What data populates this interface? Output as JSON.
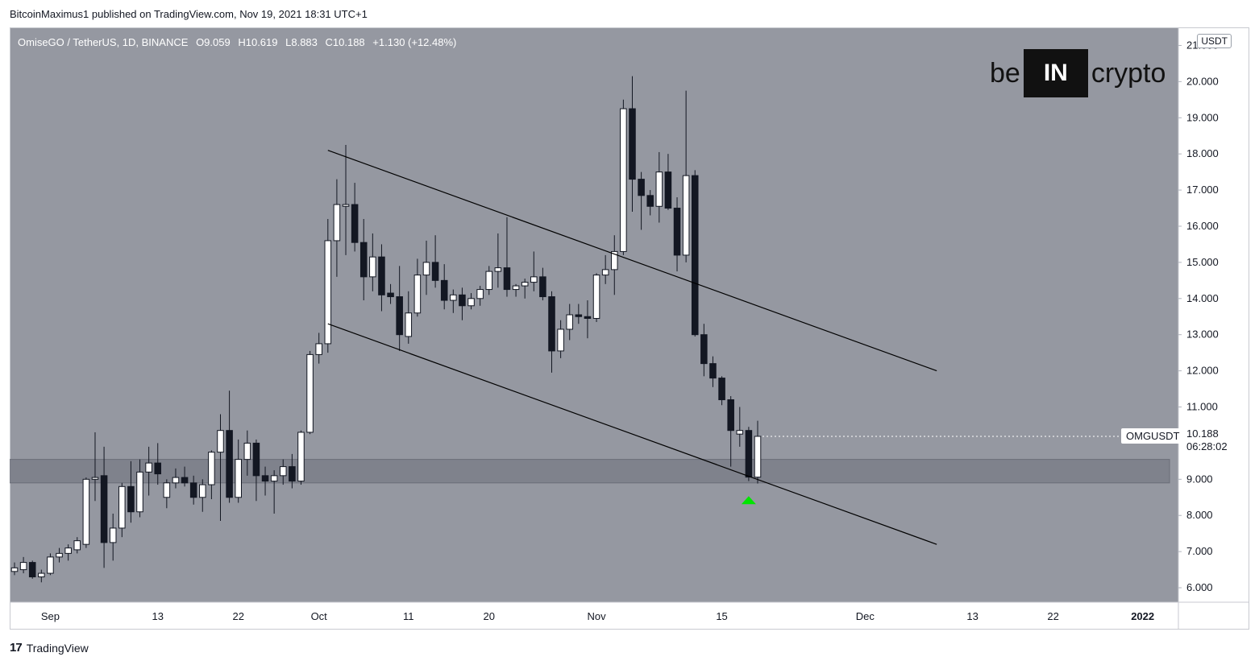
{
  "publisher_line": "BitcoinMaximus1 published on TradingView.com, Nov 19, 2021 18:31 UTC+1",
  "footer_brand": "TradingView",
  "footer_logo": "17",
  "brand": {
    "left": "be",
    "box": "IN",
    "right": "crypto"
  },
  "header": {
    "symbol": "OmiseGO / TetherUS, 1D, BINANCE",
    "open": "O9.059",
    "high": "H10.619",
    "low": "L8.883",
    "close": "C10.188",
    "change": "+1.130 (+12.48%)"
  },
  "currency_badge": "USDT",
  "price_label": "OMGUSDT",
  "price_tag": {
    "price": "10.188",
    "countdown": "06:28:02"
  },
  "colors": {
    "plot_bg": "#9598a1",
    "up_candle": "#ffffff",
    "down_candle": "#131722",
    "zone": "#787b86",
    "arrow": "#00e600",
    "channel": "#000000"
  },
  "chart_data": {
    "type": "candlestick",
    "title": "OmiseGO / TetherUS, 1D, BINANCE",
    "ylim": [
      5.6,
      21.5
    ],
    "y_ticks": [
      6,
      7,
      8,
      9,
      10,
      11,
      12,
      13,
      14,
      15,
      16,
      17,
      18,
      19,
      20,
      21
    ],
    "y_tick_labels": [
      "6.000",
      "7.000",
      "8.000",
      "9.000",
      "10.000",
      "11.000",
      "12.000",
      "13.000",
      "14.000",
      "15.000",
      "16.000",
      "17.000",
      "18.000",
      "19.000",
      "20.000",
      "21.000"
    ],
    "x_range": [
      "2021-08-28",
      "2022-01-04"
    ],
    "x_ticks": [
      {
        "date": "2021-09-01",
        "label": "Sep"
      },
      {
        "date": "2021-09-13",
        "label": "13"
      },
      {
        "date": "2021-09-22",
        "label": "22"
      },
      {
        "date": "2021-10-01",
        "label": "Oct"
      },
      {
        "date": "2021-10-11",
        "label": "11"
      },
      {
        "date": "2021-10-20",
        "label": "20"
      },
      {
        "date": "2021-11-01",
        "label": "Nov"
      },
      {
        "date": "2021-11-15",
        "label": "15"
      },
      {
        "date": "2021-12-01",
        "label": "Dec"
      },
      {
        "date": "2021-12-13",
        "label": "13"
      },
      {
        "date": "2021-12-22",
        "label": "22"
      },
      {
        "date": "2022-01-01",
        "label": "2022"
      }
    ],
    "candles": [
      {
        "date": "2021-08-28",
        "o": 6.45,
        "h": 6.7,
        "l": 6.35,
        "c": 6.55
      },
      {
        "date": "2021-08-29",
        "o": 6.5,
        "h": 6.85,
        "l": 6.4,
        "c": 6.7
      },
      {
        "date": "2021-08-30",
        "o": 6.7,
        "h": 6.75,
        "l": 6.25,
        "c": 6.3
      },
      {
        "date": "2021-08-31",
        "o": 6.3,
        "h": 6.5,
        "l": 6.15,
        "c": 6.4
      },
      {
        "date": "2021-09-01",
        "o": 6.4,
        "h": 6.95,
        "l": 6.35,
        "c": 6.85
      },
      {
        "date": "2021-09-02",
        "o": 6.85,
        "h": 7.1,
        "l": 6.7,
        "c": 6.95
      },
      {
        "date": "2021-09-03",
        "o": 6.95,
        "h": 7.2,
        "l": 6.75,
        "c": 7.1
      },
      {
        "date": "2021-09-04",
        "o": 7.05,
        "h": 7.4,
        "l": 6.95,
        "c": 7.3
      },
      {
        "date": "2021-09-05",
        "o": 7.2,
        "h": 9.05,
        "l": 7.1,
        "c": 9.0
      },
      {
        "date": "2021-09-06",
        "o": 9.0,
        "h": 10.3,
        "l": 8.4,
        "c": 9.05
      },
      {
        "date": "2021-09-07",
        "o": 9.1,
        "h": 9.9,
        "l": 6.55,
        "c": 7.25
      },
      {
        "date": "2021-09-08",
        "o": 7.25,
        "h": 8.05,
        "l": 6.75,
        "c": 7.65
      },
      {
        "date": "2021-09-09",
        "o": 7.65,
        "h": 8.9,
        "l": 7.4,
        "c": 8.8
      },
      {
        "date": "2021-09-10",
        "o": 8.8,
        "h": 9.5,
        "l": 7.8,
        "c": 8.1
      },
      {
        "date": "2021-09-11",
        "o": 8.1,
        "h": 9.55,
        "l": 7.95,
        "c": 9.2
      },
      {
        "date": "2021-09-12",
        "o": 9.2,
        "h": 9.9,
        "l": 8.55,
        "c": 9.45
      },
      {
        "date": "2021-09-13",
        "o": 9.45,
        "h": 10.0,
        "l": 8.85,
        "c": 9.15
      },
      {
        "date": "2021-09-14",
        "o": 8.5,
        "h": 9.0,
        "l": 8.2,
        "c": 8.9
      },
      {
        "date": "2021-09-15",
        "o": 8.9,
        "h": 9.3,
        "l": 8.75,
        "c": 9.05
      },
      {
        "date": "2021-09-16",
        "o": 9.05,
        "h": 9.35,
        "l": 8.8,
        "c": 8.9
      },
      {
        "date": "2021-09-17",
        "o": 8.9,
        "h": 9.1,
        "l": 8.3,
        "c": 8.5
      },
      {
        "date": "2021-09-18",
        "o": 8.5,
        "h": 9.0,
        "l": 8.1,
        "c": 8.85
      },
      {
        "date": "2021-09-19",
        "o": 8.85,
        "h": 9.8,
        "l": 8.45,
        "c": 9.75
      },
      {
        "date": "2021-09-20",
        "o": 9.75,
        "h": 10.8,
        "l": 7.85,
        "c": 10.35
      },
      {
        "date": "2021-09-21",
        "o": 10.35,
        "h": 11.45,
        "l": 8.35,
        "c": 8.5
      },
      {
        "date": "2021-09-22",
        "o": 8.5,
        "h": 10.1,
        "l": 8.35,
        "c": 9.55
      },
      {
        "date": "2021-09-23",
        "o": 9.55,
        "h": 10.35,
        "l": 9.1,
        "c": 10.0
      },
      {
        "date": "2021-09-24",
        "o": 10.0,
        "h": 10.1,
        "l": 8.4,
        "c": 9.1
      },
      {
        "date": "2021-09-25",
        "o": 9.1,
        "h": 9.35,
        "l": 8.55,
        "c": 8.95
      },
      {
        "date": "2021-09-26",
        "o": 8.95,
        "h": 9.25,
        "l": 8.05,
        "c": 9.1
      },
      {
        "date": "2021-09-27",
        "o": 9.1,
        "h": 9.55,
        "l": 8.85,
        "c": 9.35
      },
      {
        "date": "2021-09-28",
        "o": 9.35,
        "h": 9.7,
        "l": 8.75,
        "c": 8.95
      },
      {
        "date": "2021-09-29",
        "o": 8.95,
        "h": 10.35,
        "l": 8.85,
        "c": 10.3
      },
      {
        "date": "2021-09-30",
        "o": 10.3,
        "h": 12.55,
        "l": 10.25,
        "c": 12.45
      },
      {
        "date": "2021-10-01",
        "o": 12.45,
        "h": 13.05,
        "l": 12.2,
        "c": 12.75
      },
      {
        "date": "2021-10-02",
        "o": 12.75,
        "h": 16.2,
        "l": 12.5,
        "c": 15.6
      },
      {
        "date": "2021-10-03",
        "o": 15.6,
        "h": 17.3,
        "l": 14.6,
        "c": 16.6
      },
      {
        "date": "2021-10-04",
        "o": 16.55,
        "h": 18.25,
        "l": 15.2,
        "c": 16.6
      },
      {
        "date": "2021-10-05",
        "o": 16.6,
        "h": 17.2,
        "l": 15.3,
        "c": 15.55
      },
      {
        "date": "2021-10-06",
        "o": 15.55,
        "h": 16.2,
        "l": 13.95,
        "c": 14.6
      },
      {
        "date": "2021-10-07",
        "o": 14.6,
        "h": 15.8,
        "l": 14.2,
        "c": 15.15
      },
      {
        "date": "2021-10-08",
        "o": 15.15,
        "h": 15.5,
        "l": 13.65,
        "c": 14.1
      },
      {
        "date": "2021-10-09",
        "o": 14.15,
        "h": 14.4,
        "l": 13.85,
        "c": 14.05
      },
      {
        "date": "2021-10-10",
        "o": 14.05,
        "h": 14.9,
        "l": 12.55,
        "c": 13.0
      },
      {
        "date": "2021-10-11",
        "o": 12.95,
        "h": 14.2,
        "l": 12.75,
        "c": 13.6
      },
      {
        "date": "2021-10-12",
        "o": 13.6,
        "h": 15.1,
        "l": 13.5,
        "c": 14.65
      },
      {
        "date": "2021-10-13",
        "o": 14.65,
        "h": 15.6,
        "l": 14.1,
        "c": 15.0
      },
      {
        "date": "2021-10-14",
        "o": 15.0,
        "h": 15.75,
        "l": 14.3,
        "c": 14.5
      },
      {
        "date": "2021-10-15",
        "o": 14.5,
        "h": 14.95,
        "l": 13.7,
        "c": 13.95
      },
      {
        "date": "2021-10-16",
        "o": 13.95,
        "h": 14.25,
        "l": 13.6,
        "c": 14.1
      },
      {
        "date": "2021-10-17",
        "o": 14.1,
        "h": 14.3,
        "l": 13.4,
        "c": 13.8
      },
      {
        "date": "2021-10-18",
        "o": 13.8,
        "h": 14.15,
        "l": 13.7,
        "c": 14.0
      },
      {
        "date": "2021-10-19",
        "o": 14.0,
        "h": 14.35,
        "l": 13.8,
        "c": 14.25
      },
      {
        "date": "2021-10-20",
        "o": 14.25,
        "h": 14.9,
        "l": 14.1,
        "c": 14.75
      },
      {
        "date": "2021-10-21",
        "o": 14.75,
        "h": 15.8,
        "l": 14.3,
        "c": 14.85
      },
      {
        "date": "2021-10-22",
        "o": 14.85,
        "h": 16.25,
        "l": 14.05,
        "c": 14.25
      },
      {
        "date": "2021-10-23",
        "o": 14.25,
        "h": 14.4,
        "l": 14.05,
        "c": 14.35
      },
      {
        "date": "2021-10-24",
        "o": 14.35,
        "h": 14.55,
        "l": 14.0,
        "c": 14.45
      },
      {
        "date": "2021-10-25",
        "o": 14.45,
        "h": 15.3,
        "l": 14.2,
        "c": 14.6
      },
      {
        "date": "2021-10-26",
        "o": 14.6,
        "h": 14.85,
        "l": 13.95,
        "c": 14.05
      },
      {
        "date": "2021-10-27",
        "o": 14.05,
        "h": 14.2,
        "l": 11.95,
        "c": 12.55
      },
      {
        "date": "2021-10-28",
        "o": 12.55,
        "h": 13.4,
        "l": 12.35,
        "c": 13.15
      },
      {
        "date": "2021-10-29",
        "o": 13.15,
        "h": 13.85,
        "l": 12.85,
        "c": 13.55
      },
      {
        "date": "2021-10-30",
        "o": 13.55,
        "h": 13.85,
        "l": 13.3,
        "c": 13.5
      },
      {
        "date": "2021-10-31",
        "o": 13.5,
        "h": 13.95,
        "l": 12.9,
        "c": 13.45
      },
      {
        "date": "2021-11-01",
        "o": 13.45,
        "h": 14.7,
        "l": 13.35,
        "c": 14.65
      },
      {
        "date": "2021-11-02",
        "o": 14.65,
        "h": 15.2,
        "l": 14.4,
        "c": 14.8
      },
      {
        "date": "2021-11-03",
        "o": 14.8,
        "h": 15.75,
        "l": 14.1,
        "c": 15.3
      },
      {
        "date": "2021-11-04",
        "o": 15.3,
        "h": 19.5,
        "l": 15.2,
        "c": 19.25
      },
      {
        "date": "2021-11-05",
        "o": 19.25,
        "h": 20.15,
        "l": 16.4,
        "c": 17.3
      },
      {
        "date": "2021-11-06",
        "o": 17.3,
        "h": 17.5,
        "l": 15.9,
        "c": 16.85
      },
      {
        "date": "2021-11-07",
        "o": 16.85,
        "h": 17.0,
        "l": 16.3,
        "c": 16.55
      },
      {
        "date": "2021-11-08",
        "o": 16.55,
        "h": 18.05,
        "l": 16.1,
        "c": 17.5
      },
      {
        "date": "2021-11-09",
        "o": 17.5,
        "h": 18.0,
        "l": 16.45,
        "c": 16.5
      },
      {
        "date": "2021-11-10",
        "o": 16.5,
        "h": 16.8,
        "l": 14.75,
        "c": 15.2
      },
      {
        "date": "2021-11-11",
        "o": 15.2,
        "h": 19.75,
        "l": 15.0,
        "c": 17.4
      },
      {
        "date": "2021-11-12",
        "o": 17.4,
        "h": 17.55,
        "l": 12.95,
        "c": 13.0
      },
      {
        "date": "2021-11-13",
        "o": 13.0,
        "h": 13.3,
        "l": 11.85,
        "c": 12.2
      },
      {
        "date": "2021-11-14",
        "o": 12.2,
        "h": 12.4,
        "l": 11.55,
        "c": 11.8
      },
      {
        "date": "2021-11-15",
        "o": 11.8,
        "h": 11.85,
        "l": 11.05,
        "c": 11.2
      },
      {
        "date": "2021-11-16",
        "o": 11.2,
        "h": 11.3,
        "l": 9.35,
        "c": 10.35
      },
      {
        "date": "2021-11-17",
        "o": 10.25,
        "h": 11.0,
        "l": 9.9,
        "c": 10.35
      },
      {
        "date": "2021-11-18",
        "o": 10.35,
        "h": 10.45,
        "l": 8.95,
        "c": 9.06
      },
      {
        "date": "2021-11-19",
        "o": 9.059,
        "h": 10.619,
        "l": 8.883,
        "c": 10.188
      }
    ],
    "channel_lines": [
      {
        "name": "upper",
        "x": [
          "2021-10-02",
          "2021-12-09"
        ],
        "y": [
          18.1,
          12.0
        ]
      },
      {
        "name": "lower",
        "x": [
          "2021-10-02",
          "2021-12-09"
        ],
        "y": [
          13.3,
          7.2
        ]
      }
    ],
    "support_zone": {
      "y": [
        8.9,
        9.55
      ],
      "x": [
        "2021-08-28",
        "2022-01-04"
      ]
    },
    "signal_marker": {
      "date": "2021-11-18",
      "y": 8.4,
      "shape": "up-arrow"
    },
    "last_price": 10.188
  }
}
